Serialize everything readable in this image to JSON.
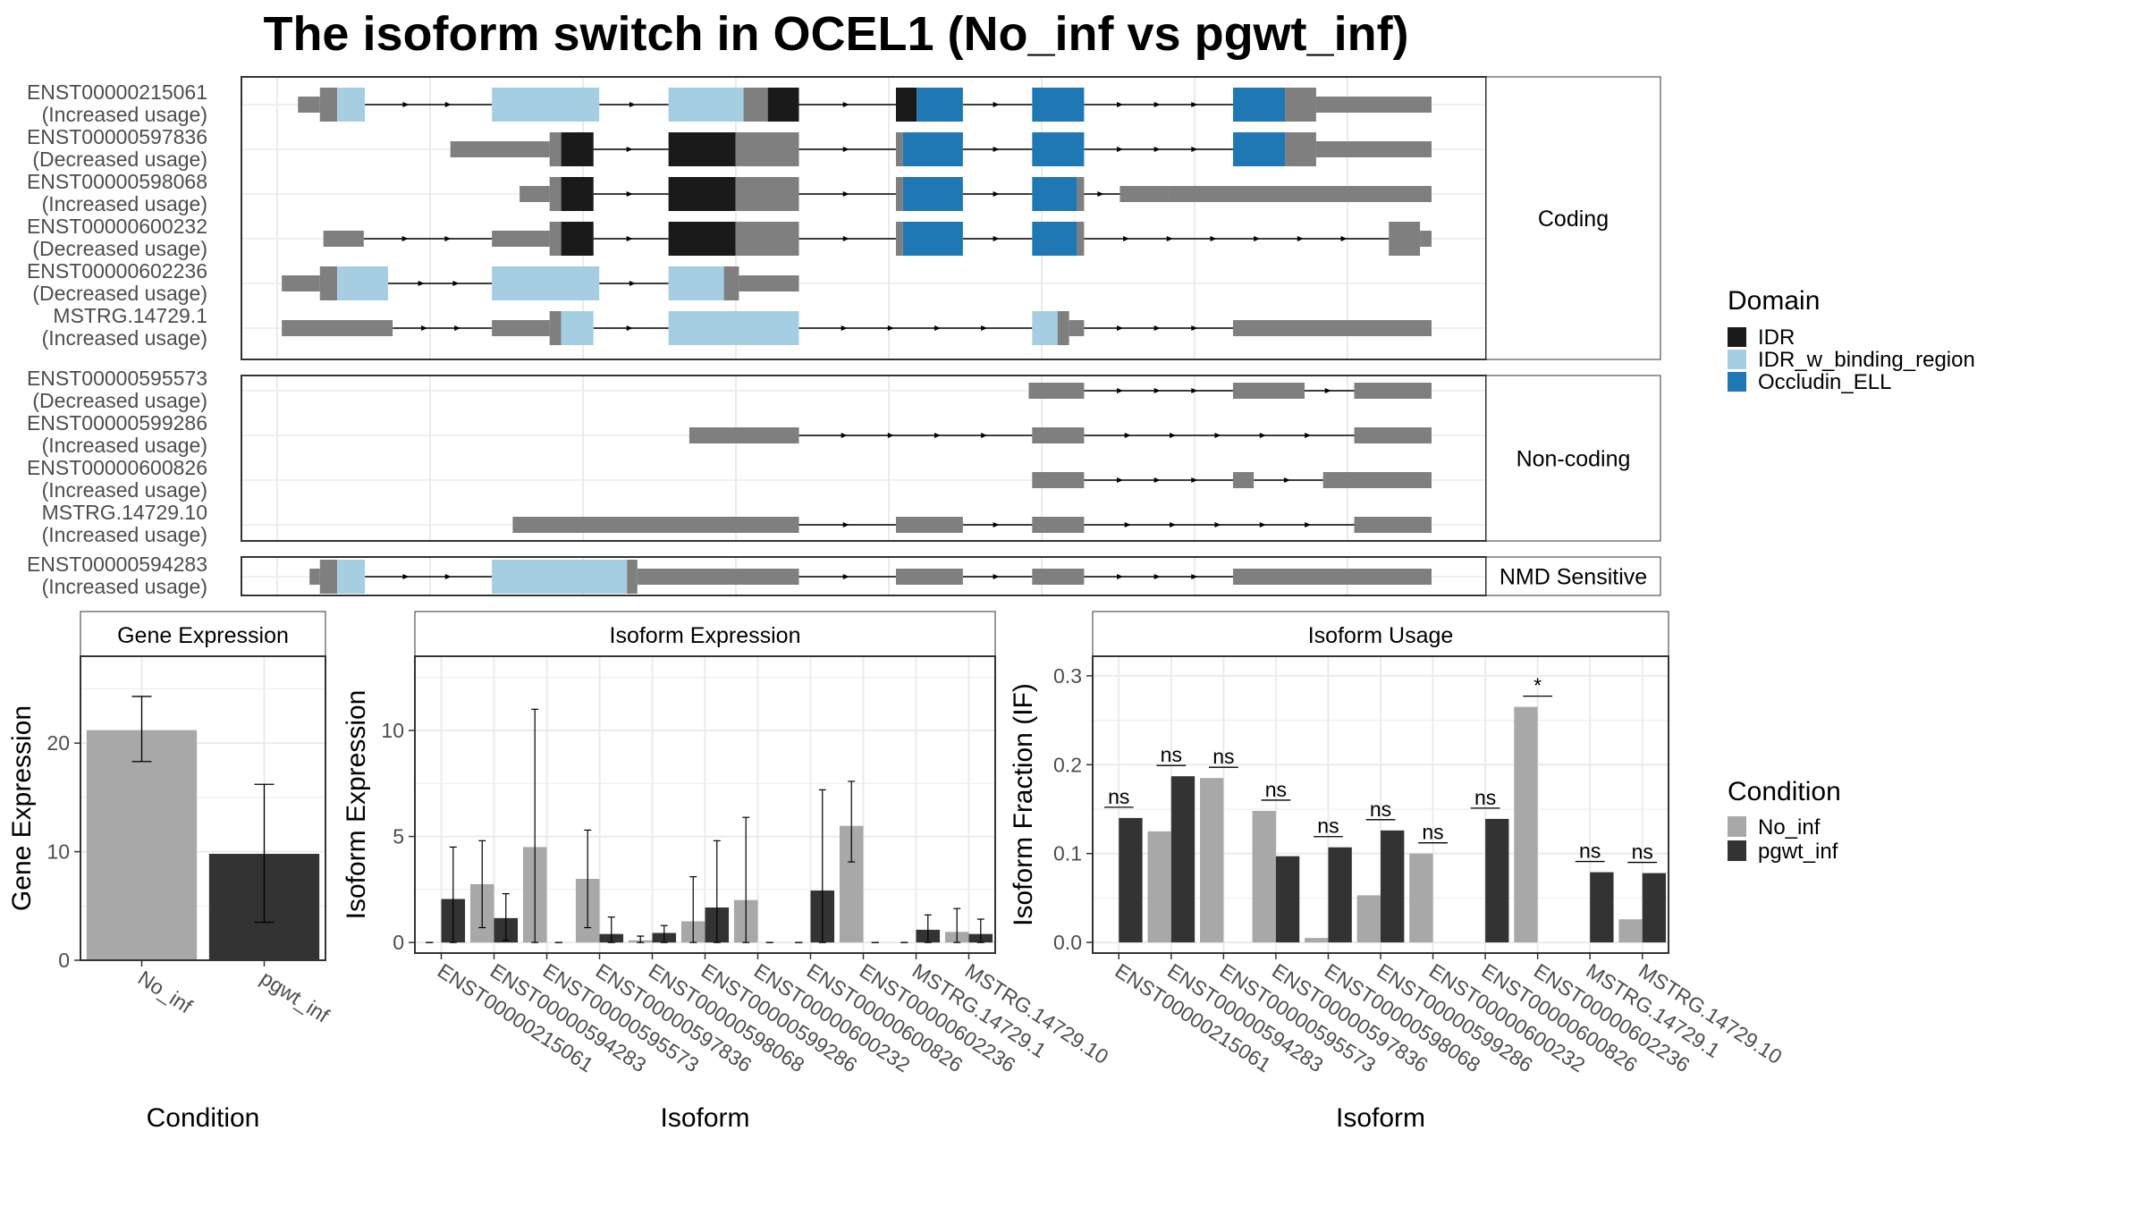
{
  "title": "The isoform switch in OCEL1 (No_inf vs pgwt_inf)",
  "colors": {
    "IDR": "#1a1a1a",
    "IDR_w_binding_region": "#a6cee3",
    "Occludin_ELL": "#1f78b4",
    "exon": "#7f7f7f",
    "No_inf": "#a8a8a8",
    "pgwt_inf": "#333333",
    "panel_border": "#4d4d4d",
    "grid": "#ebebeb"
  },
  "transcript_panels": [
    {
      "label": "Coding",
      "rows": [
        {
          "id": "ENST00000215061",
          "usage": "(Increased usage)",
          "segs": [
            [
              0.018,
              0.037,
              "t"
            ],
            [
              0.037,
              0.052,
              "e"
            ],
            [
              0.052,
              0.076,
              "B"
            ],
            [
              0.186,
              0.279,
              "B"
            ],
            [
              0.339,
              0.404,
              "B"
            ],
            [
              0.404,
              0.425,
              "e"
            ],
            [
              0.425,
              0.452,
              "I"
            ],
            [
              0.536,
              0.554,
              "I"
            ],
            [
              0.554,
              0.594,
              "O"
            ],
            [
              0.654,
              0.699,
              "O"
            ],
            [
              0.828,
              0.873,
              "O"
            ],
            [
              0.873,
              0.9,
              "e"
            ],
            [
              0.9,
              1.0,
              "t"
            ]
          ]
        },
        {
          "id": "ENST00000597836",
          "usage": "(Decreased usage)",
          "segs": [
            [
              0.15,
              0.236,
              "t"
            ],
            [
              0.236,
              0.246,
              "e"
            ],
            [
              0.246,
              0.274,
              "I"
            ],
            [
              0.339,
              0.397,
              "I"
            ],
            [
              0.397,
              0.452,
              "e"
            ],
            [
              0.536,
              0.542,
              "e"
            ],
            [
              0.542,
              0.594,
              "O"
            ],
            [
              0.654,
              0.699,
              "O"
            ],
            [
              0.828,
              0.873,
              "O"
            ],
            [
              0.873,
              0.9,
              "e"
            ],
            [
              0.9,
              1.0,
              "t"
            ]
          ]
        },
        {
          "id": "ENST00000598068",
          "usage": "(Increased usage)",
          "segs": [
            [
              0.21,
              0.236,
              "t"
            ],
            [
              0.236,
              0.246,
              "e"
            ],
            [
              0.246,
              0.274,
              "I"
            ],
            [
              0.339,
              0.397,
              "I"
            ],
            [
              0.397,
              0.452,
              "e"
            ],
            [
              0.536,
              0.542,
              "e"
            ],
            [
              0.542,
              0.594,
              "O"
            ],
            [
              0.654,
              0.693,
              "O"
            ],
            [
              0.693,
              0.699,
              "e"
            ],
            [
              0.73,
              0.773,
              "t"
            ],
            [
              0.773,
              1.0,
              "t"
            ]
          ]
        },
        {
          "id": "ENST00000600232",
          "usage": "(Decreased usage)",
          "segs": [
            [
              0.04,
              0.075,
              "t"
            ],
            [
              0.186,
              0.236,
              "t"
            ],
            [
              0.236,
              0.246,
              "e"
            ],
            [
              0.246,
              0.274,
              "I"
            ],
            [
              0.339,
              0.397,
              "I"
            ],
            [
              0.397,
              0.452,
              "e"
            ],
            [
              0.536,
              0.542,
              "e"
            ],
            [
              0.542,
              0.594,
              "O"
            ],
            [
              0.654,
              0.693,
              "O"
            ],
            [
              0.693,
              0.699,
              "e"
            ],
            [
              0.963,
              0.99,
              "e"
            ],
            [
              0.99,
              1.0,
              "t"
            ]
          ]
        },
        {
          "id": "ENST00000602236",
          "usage": "(Decreased usage)",
          "segs": [
            [
              0.004,
              0.037,
              "t"
            ],
            [
              0.037,
              0.052,
              "e"
            ],
            [
              0.052,
              0.096,
              "B"
            ],
            [
              0.186,
              0.279,
              "B"
            ],
            [
              0.339,
              0.387,
              "B"
            ],
            [
              0.387,
              0.4,
              "e"
            ],
            [
              0.4,
              0.452,
              "t"
            ]
          ]
        },
        {
          "id": "MSTRG.14729.1",
          "usage": "(Increased usage)",
          "segs": [
            [
              0.004,
              0.1,
              "t"
            ],
            [
              0.186,
              0.236,
              "t"
            ],
            [
              0.236,
              0.246,
              "e"
            ],
            [
              0.246,
              0.274,
              "B"
            ],
            [
              0.339,
              0.452,
              "B"
            ],
            [
              0.654,
              0.676,
              "B"
            ],
            [
              0.676,
              0.686,
              "e"
            ],
            [
              0.686,
              0.699,
              "t"
            ],
            [
              0.828,
              1.0,
              "t"
            ]
          ]
        }
      ]
    },
    {
      "label": "Non-coding",
      "rows": [
        {
          "id": "ENST00000595573",
          "usage": "(Decreased usage)",
          "segs": [
            [
              0.651,
              0.699,
              "t"
            ],
            [
              0.828,
              0.89,
              "t"
            ],
            [
              0.933,
              1.0,
              "t"
            ]
          ]
        },
        {
          "id": "ENST00000599286",
          "usage": "(Increased usage)",
          "segs": [
            [
              0.357,
              0.452,
              "t"
            ],
            [
              0.654,
              0.699,
              "t"
            ],
            [
              0.933,
              1.0,
              "t"
            ]
          ]
        },
        {
          "id": "ENST00000600826",
          "usage": "(Increased usage)",
          "segs": [
            [
              0.654,
              0.699,
              "t"
            ],
            [
              0.828,
              0.846,
              "t"
            ],
            [
              0.906,
              1.0,
              "t"
            ]
          ]
        },
        {
          "id": "MSTRG.14729.10",
          "usage": "(Increased usage)",
          "segs": [
            [
              0.204,
              0.452,
              "t"
            ],
            [
              0.536,
              0.594,
              "t"
            ],
            [
              0.654,
              0.699,
              "t"
            ],
            [
              0.933,
              1.0,
              "t"
            ]
          ]
        }
      ]
    },
    {
      "label": "NMD Sensitive",
      "rows": [
        {
          "id": "ENST00000594283",
          "usage": "(Increased usage)",
          "segs": [
            [
              0.028,
              0.037,
              "t"
            ],
            [
              0.037,
              0.052,
              "e"
            ],
            [
              0.052,
              0.076,
              "B"
            ],
            [
              0.186,
              0.303,
              "B"
            ],
            [
              0.303,
              0.312,
              "e"
            ],
            [
              0.312,
              0.452,
              "t"
            ],
            [
              0.536,
              0.594,
              "t"
            ],
            [
              0.654,
              0.699,
              "t"
            ],
            [
              0.828,
              1.0,
              "t"
            ]
          ]
        }
      ]
    }
  ],
  "legends": {
    "domain_title": "Domain",
    "domain_items": [
      "IDR",
      "IDR_w_binding_region",
      "Occludin_ELL"
    ],
    "condition_title": "Condition",
    "condition_items": [
      "No_inf",
      "pgwt_inf"
    ]
  },
  "chart_data": [
    {
      "type": "bar",
      "title": "Gene Expression",
      "xlabel": "Condition",
      "ylabel": "Gene Expression",
      "categories": [
        "No_inf",
        "pgwt_inf"
      ],
      "values": [
        21.2,
        9.8
      ],
      "error": [
        [
          18.3,
          24.3
        ],
        [
          3.5,
          16.2
        ]
      ],
      "ylim": [
        0,
        28
      ],
      "yticks": [
        0,
        10,
        20
      ]
    },
    {
      "type": "bar",
      "title": "Isoform Expression",
      "xlabel": "Isoform",
      "ylabel": "Isoform Expression",
      "categories": [
        "ENST00000215061",
        "ENST00000594283",
        "ENST00000595573",
        "ENST00000597836",
        "ENST00000598068",
        "ENST00000599286",
        "ENST00000600232",
        "ENST00000600826",
        "ENST00000602236",
        "MSTRG.14729.1",
        "MSTRG.14729.10"
      ],
      "series": [
        {
          "name": "No_inf",
          "values": [
            0,
            2.75,
            4.5,
            3.0,
            0.1,
            1.0,
            2.0,
            0,
            5.5,
            0,
            0.5
          ],
          "error": [
            [
              0,
              0
            ],
            [
              0.7,
              4.8
            ],
            [
              0,
              11.0
            ],
            [
              0.7,
              5.3
            ],
            [
              0,
              0.3
            ],
            [
              0,
              3.1
            ],
            [
              0,
              5.9
            ],
            [
              0,
              0
            ],
            [
              3.8,
              7.6
            ],
            [
              0,
              0
            ],
            [
              0,
              1.6
            ]
          ]
        },
        {
          "name": "pgwt_inf",
          "values": [
            2.05,
            1.15,
            0,
            0.4,
            0.45,
            1.65,
            0,
            2.45,
            0,
            0.6,
            0.4
          ],
          "error": [
            [
              0,
              4.5
            ],
            [
              0.1,
              2.3
            ],
            [
              0,
              0
            ],
            [
              0,
              1.2
            ],
            [
              0,
              0.8
            ],
            [
              0,
              4.8
            ],
            [
              0,
              0
            ],
            [
              0,
              7.2
            ],
            [
              0,
              0
            ],
            [
              0,
              1.3
            ],
            [
              0,
              1.1
            ]
          ]
        }
      ],
      "ylim": [
        -0.5,
        13.5
      ],
      "yticks": [
        0,
        5,
        10
      ]
    },
    {
      "type": "bar",
      "title": "Isoform Usage",
      "xlabel": "Isoform",
      "ylabel": "Isoform Fraction (IF)",
      "categories": [
        "ENST00000215061",
        "ENST00000594283",
        "ENST00000595573",
        "ENST00000597836",
        "ENST00000598068",
        "ENST00000599286",
        "ENST00000600232",
        "ENST00000600826",
        "ENST00000602236",
        "MSTRG.14729.1",
        "MSTRG.14729.10"
      ],
      "series": [
        {
          "name": "No_inf",
          "values": [
            0,
            0.125,
            0.185,
            0.148,
            0.005,
            0.053,
            0.1,
            0,
            0.265,
            0,
            0.026
          ]
        },
        {
          "name": "pgwt_inf",
          "values": [
            0.14,
            0.187,
            0,
            0.097,
            0.107,
            0.126,
            0,
            0.139,
            0,
            0.079,
            0.078
          ]
        }
      ],
      "significance": [
        "ns",
        "ns",
        "ns",
        "ns",
        "ns",
        "ns",
        "ns",
        "ns",
        "*",
        "ns",
        "ns"
      ],
      "ylim": [
        -0.012,
        0.322
      ],
      "yticks": [
        "0.0",
        "0.1",
        "0.2",
        "0.3"
      ]
    }
  ]
}
